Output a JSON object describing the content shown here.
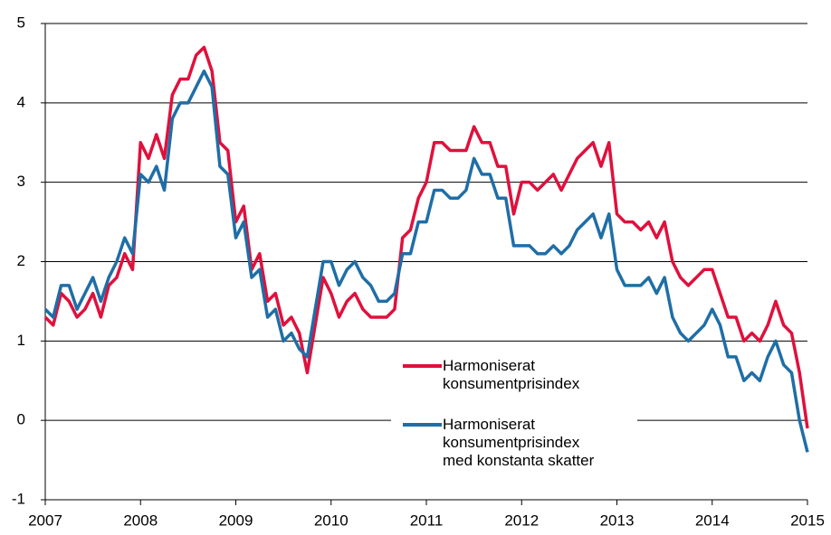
{
  "chart_data": {
    "type": "line",
    "categories": [
      "2007",
      null,
      null,
      null,
      null,
      null,
      null,
      null,
      null,
      null,
      null,
      null,
      "2008",
      null,
      null,
      null,
      null,
      null,
      null,
      null,
      null,
      null,
      null,
      null,
      "2009",
      null,
      null,
      null,
      null,
      null,
      null,
      null,
      null,
      null,
      null,
      null,
      "2010",
      null,
      null,
      null,
      null,
      null,
      null,
      null,
      null,
      null,
      null,
      null,
      "2011",
      null,
      null,
      null,
      null,
      null,
      null,
      null,
      null,
      null,
      null,
      null,
      "2012",
      null,
      null,
      null,
      null,
      null,
      null,
      null,
      null,
      null,
      null,
      null,
      "2013",
      null,
      null,
      null,
      null,
      null,
      null,
      null,
      null,
      null,
      null,
      null,
      "2014",
      null,
      null,
      null,
      null,
      null,
      null,
      null,
      null,
      null,
      null,
      null,
      "2015"
    ],
    "series": [
      {
        "name": "Harmoniserat\nkonsumentprisindex",
        "color": "#e0103c",
        "values": [
          1.3,
          1.2,
          1.6,
          1.5,
          1.3,
          1.4,
          1.6,
          1.3,
          1.7,
          1.8,
          2.1,
          1.9,
          3.5,
          3.3,
          3.6,
          3.3,
          4.1,
          4.3,
          4.3,
          4.6,
          4.7,
          4.4,
          3.5,
          3.4,
          2.5,
          2.7,
          1.9,
          2.1,
          1.5,
          1.6,
          1.2,
          1.3,
          1.1,
          0.6,
          1.2,
          1.8,
          1.6,
          1.3,
          1.5,
          1.6,
          1.4,
          1.3,
          1.3,
          1.3,
          1.4,
          2.3,
          2.4,
          2.8,
          3.0,
          3.5,
          3.5,
          3.4,
          3.4,
          3.4,
          3.7,
          3.5,
          3.5,
          3.2,
          3.2,
          2.6,
          3.0,
          3.0,
          2.9,
          3.0,
          3.1,
          2.9,
          3.1,
          3.3,
          3.4,
          3.5,
          3.2,
          3.5,
          2.6,
          2.5,
          2.5,
          2.4,
          2.5,
          2.3,
          2.5,
          2.0,
          1.8,
          1.7,
          1.8,
          1.9,
          1.9,
          1.6,
          1.3,
          1.3,
          1.0,
          1.1,
          1.0,
          1.2,
          1.5,
          1.2,
          1.1,
          0.6,
          -0.1
        ]
      },
      {
        "name": "Harmoniserat\nkonsumentprisindex\nmed konstanta skatter",
        "color": "#1f6ea6",
        "values": [
          1.4,
          1.3,
          1.7,
          1.7,
          1.4,
          1.6,
          1.8,
          1.5,
          1.8,
          2.0,
          2.3,
          2.1,
          3.1,
          3.0,
          3.2,
          2.9,
          3.8,
          4.0,
          4.0,
          4.2,
          4.4,
          4.2,
          3.2,
          3.1,
          2.3,
          2.5,
          1.8,
          1.9,
          1.3,
          1.4,
          1.0,
          1.1,
          0.9,
          0.8,
          1.4,
          2.0,
          2.0,
          1.7,
          1.9,
          2.0,
          1.8,
          1.7,
          1.5,
          1.5,
          1.6,
          2.1,
          2.1,
          2.5,
          2.5,
          2.9,
          2.9,
          2.8,
          2.8,
          2.9,
          3.3,
          3.1,
          3.1,
          2.8,
          2.8,
          2.2,
          2.2,
          2.2,
          2.1,
          2.1,
          2.2,
          2.1,
          2.2,
          2.4,
          2.5,
          2.6,
          2.3,
          2.6,
          1.9,
          1.7,
          1.7,
          1.7,
          1.8,
          1.6,
          1.8,
          1.3,
          1.1,
          1.0,
          1.1,
          1.2,
          1.4,
          1.2,
          0.8,
          0.8,
          0.5,
          0.6,
          0.5,
          0.8,
          1.0,
          0.7,
          0.6,
          0.0,
          -0.4
        ]
      }
    ],
    "ylim": [
      -1,
      5
    ],
    "yticks": [
      -1,
      0,
      1,
      2,
      3,
      4,
      5
    ],
    "grid": true
  }
}
